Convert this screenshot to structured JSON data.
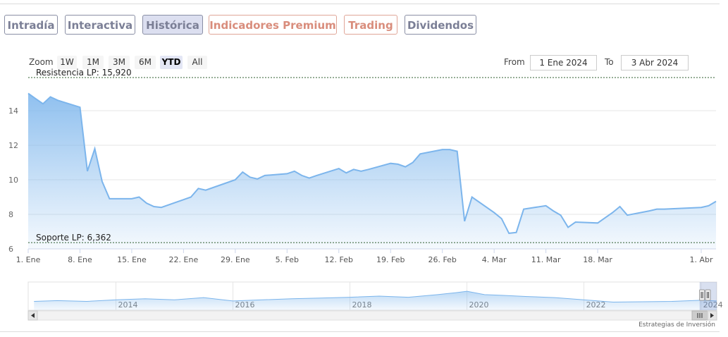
{
  "tabs": [
    {
      "label": "Intradía",
      "style": "normal"
    },
    {
      "label": "Interactiva",
      "style": "normal"
    },
    {
      "label": "Histórica",
      "style": "active"
    },
    {
      "label": "Indicadores Premium",
      "style": "orange"
    },
    {
      "label": "Trading",
      "style": "orange"
    },
    {
      "label": "Dividendos",
      "style": "normal"
    }
  ],
  "zoom": {
    "label": "Zoom",
    "buttons": [
      "1W",
      "1M",
      "3M",
      "6M",
      "YTD",
      "All"
    ],
    "active": "YTD"
  },
  "range": {
    "from_label": "From",
    "from_value": "1 Ene 2024",
    "to_label": "To",
    "to_value": "3 Abr 2024"
  },
  "credit": "Estrategias de Inversión",
  "colors": {
    "line": "#7cb5ec",
    "tab_border": "#8a8fa5",
    "tab_orange": "#d98d7c",
    "reference_line": "#2f5d2f"
  },
  "chart_data": {
    "type": "area",
    "x_start": "2024-01-01",
    "x_end": "2024-04-03",
    "ylim": [
      6,
      16
    ],
    "y_ticks": [
      6,
      8,
      10,
      12,
      14
    ],
    "x_ticks": [
      {
        "date": "2024-01-01",
        "label": "1. Ene"
      },
      {
        "date": "2024-01-08",
        "label": "8. Ene"
      },
      {
        "date": "2024-01-15",
        "label": "15. Ene"
      },
      {
        "date": "2024-01-22",
        "label": "22. Ene"
      },
      {
        "date": "2024-01-29",
        "label": "29. Ene"
      },
      {
        "date": "2024-02-05",
        "label": "5. Feb"
      },
      {
        "date": "2024-02-12",
        "label": "12. Feb"
      },
      {
        "date": "2024-02-19",
        "label": "19. Feb"
      },
      {
        "date": "2024-02-26",
        "label": "26. Feb"
      },
      {
        "date": "2024-03-04",
        "label": "4. Mar"
      },
      {
        "date": "2024-03-11",
        "label": "11. Mar"
      },
      {
        "date": "2024-03-18",
        "label": "18. Mar"
      },
      {
        "date": "2024-04-01",
        "label": "1. Abr"
      }
    ],
    "series": [
      {
        "points": [
          [
            "2024-01-01",
            15.0
          ],
          [
            "2024-01-02",
            14.7
          ],
          [
            "2024-01-03",
            14.4
          ],
          [
            "2024-01-04",
            14.8
          ],
          [
            "2024-01-05",
            14.6
          ],
          [
            "2024-01-08",
            14.2
          ],
          [
            "2024-01-09",
            10.5
          ],
          [
            "2024-01-10",
            11.8
          ],
          [
            "2024-01-11",
            9.9
          ],
          [
            "2024-01-12",
            8.9
          ],
          [
            "2024-01-15",
            8.9
          ],
          [
            "2024-01-16",
            9.0
          ],
          [
            "2024-01-17",
            8.65
          ],
          [
            "2024-01-18",
            8.45
          ],
          [
            "2024-01-19",
            8.4
          ],
          [
            "2024-01-22",
            8.85
          ],
          [
            "2024-01-23",
            9.0
          ],
          [
            "2024-01-24",
            9.5
          ],
          [
            "2024-01-25",
            9.4
          ],
          [
            "2024-01-26",
            9.55
          ],
          [
            "2024-01-29",
            10.0
          ],
          [
            "2024-01-30",
            10.45
          ],
          [
            "2024-01-31",
            10.15
          ],
          [
            "2024-02-01",
            10.05
          ],
          [
            "2024-02-02",
            10.25
          ],
          [
            "2024-02-05",
            10.35
          ],
          [
            "2024-02-06",
            10.5
          ],
          [
            "2024-02-07",
            10.25
          ],
          [
            "2024-02-08",
            10.1
          ],
          [
            "2024-02-09",
            10.25
          ],
          [
            "2024-02-12",
            10.65
          ],
          [
            "2024-02-13",
            10.4
          ],
          [
            "2024-02-14",
            10.6
          ],
          [
            "2024-02-15",
            10.5
          ],
          [
            "2024-02-16",
            10.6
          ],
          [
            "2024-02-19",
            10.95
          ],
          [
            "2024-02-20",
            10.9
          ],
          [
            "2024-02-21",
            10.75
          ],
          [
            "2024-02-22",
            11.0
          ],
          [
            "2024-02-23",
            11.5
          ],
          [
            "2024-02-26",
            11.75
          ],
          [
            "2024-02-27",
            11.75
          ],
          [
            "2024-02-28",
            11.65
          ],
          [
            "2024-02-29",
            7.6
          ],
          [
            "2024-03-01",
            9.0
          ],
          [
            "2024-03-04",
            8.1
          ],
          [
            "2024-03-05",
            7.75
          ],
          [
            "2024-03-06",
            6.9
          ],
          [
            "2024-03-07",
            6.95
          ],
          [
            "2024-03-08",
            8.3
          ],
          [
            "2024-03-11",
            8.5
          ],
          [
            "2024-03-12",
            8.2
          ],
          [
            "2024-03-13",
            7.95
          ],
          [
            "2024-03-14",
            7.25
          ],
          [
            "2024-03-15",
            7.55
          ],
          [
            "2024-03-18",
            7.5
          ],
          [
            "2024-03-19",
            7.8
          ],
          [
            "2024-03-20",
            8.1
          ],
          [
            "2024-03-21",
            8.45
          ],
          [
            "2024-03-22",
            7.95
          ],
          [
            "2024-03-25",
            8.2
          ],
          [
            "2024-03-26",
            8.3
          ],
          [
            "2024-03-27",
            8.3
          ],
          [
            "2024-04-01",
            8.4
          ],
          [
            "2024-04-02",
            8.5
          ],
          [
            "2024-04-03",
            8.75
          ]
        ]
      }
    ],
    "reference_lines": [
      {
        "label": "Resistencia LP: 15,920",
        "value": 15.92
      },
      {
        "label": "Soporte LP: 6,362",
        "value": 6.362
      }
    ],
    "navigator": {
      "year_labels": [
        "2014",
        "2016",
        "2018",
        "2020",
        "2022",
        "2024"
      ],
      "years": [
        2014,
        2016,
        2018,
        2020,
        2022,
        2024
      ],
      "x_start_year": 2012.5,
      "x_end_year": 2024.27,
      "overview": [
        [
          2012.6,
          7.6
        ],
        [
          2013.0,
          7.8
        ],
        [
          2013.5,
          7.6
        ],
        [
          2014.0,
          8.0
        ],
        [
          2014.5,
          8.3
        ],
        [
          2015.0,
          8.0
        ],
        [
          2015.5,
          8.6
        ],
        [
          2016.0,
          7.7
        ],
        [
          2016.5,
          8.0
        ],
        [
          2017.0,
          8.3
        ],
        [
          2017.5,
          8.5
        ],
        [
          2018.0,
          8.7
        ],
        [
          2018.5,
          9.0
        ],
        [
          2019.0,
          8.7
        ],
        [
          2019.5,
          9.4
        ],
        [
          2019.8,
          9.9
        ],
        [
          2020.0,
          10.3
        ],
        [
          2020.3,
          9.4
        ],
        [
          2020.6,
          9.2
        ],
        [
          2021.0,
          8.9
        ],
        [
          2021.5,
          8.6
        ],
        [
          2022.0,
          8.0
        ],
        [
          2022.5,
          7.4
        ],
        [
          2023.0,
          7.5
        ],
        [
          2023.5,
          7.6
        ],
        [
          2024.0,
          7.9
        ],
        [
          2024.27,
          7.7
        ]
      ]
    }
  }
}
